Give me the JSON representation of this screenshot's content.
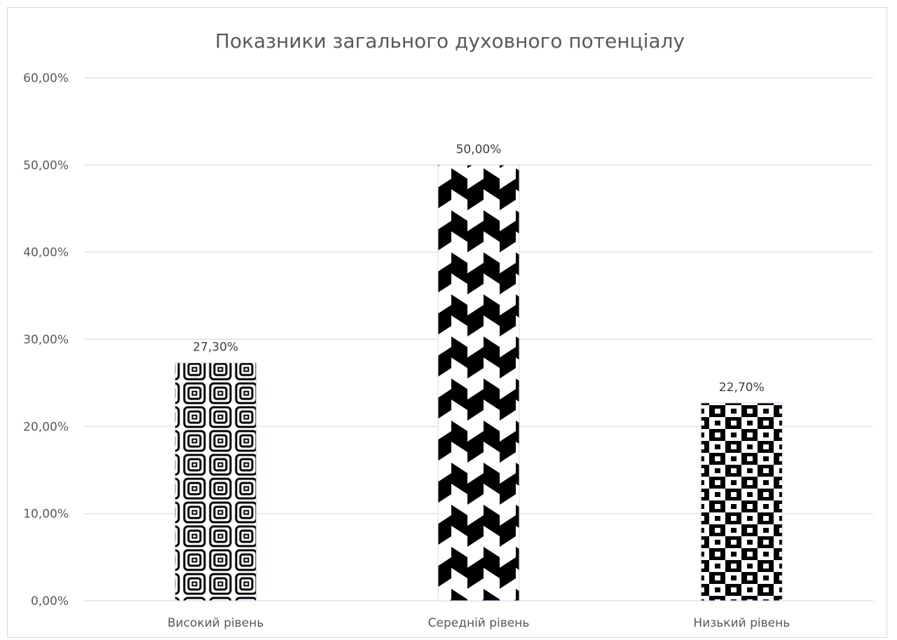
{
  "chart_data": {
    "type": "bar",
    "title": "Показники загального духовного потенціалу",
    "categories": [
      "Високий рівень",
      "Середній рівень",
      "Низький рівень"
    ],
    "values": [
      27.3,
      50.0,
      22.7
    ],
    "value_labels": [
      "27,30%",
      "50,00%",
      "22,70%"
    ],
    "ylim": [
      0,
      60
    ],
    "yticks": [
      0,
      10,
      20,
      30,
      40,
      50,
      60
    ],
    "ytick_labels": [
      "0,00%",
      "10,00%",
      "20,00%",
      "30,00%",
      "40,00%",
      "50,00%",
      "60,00%"
    ],
    "grid": true,
    "legend": "none",
    "xlabel": "",
    "ylabel": "",
    "bar_patterns": [
      "concentric-squares",
      "chevron",
      "checker-dots"
    ],
    "colors": {
      "pattern_dark": "#000000",
      "pattern_light": "#ffffff",
      "grid": "#d9d9d9",
      "text": "#595959"
    }
  }
}
